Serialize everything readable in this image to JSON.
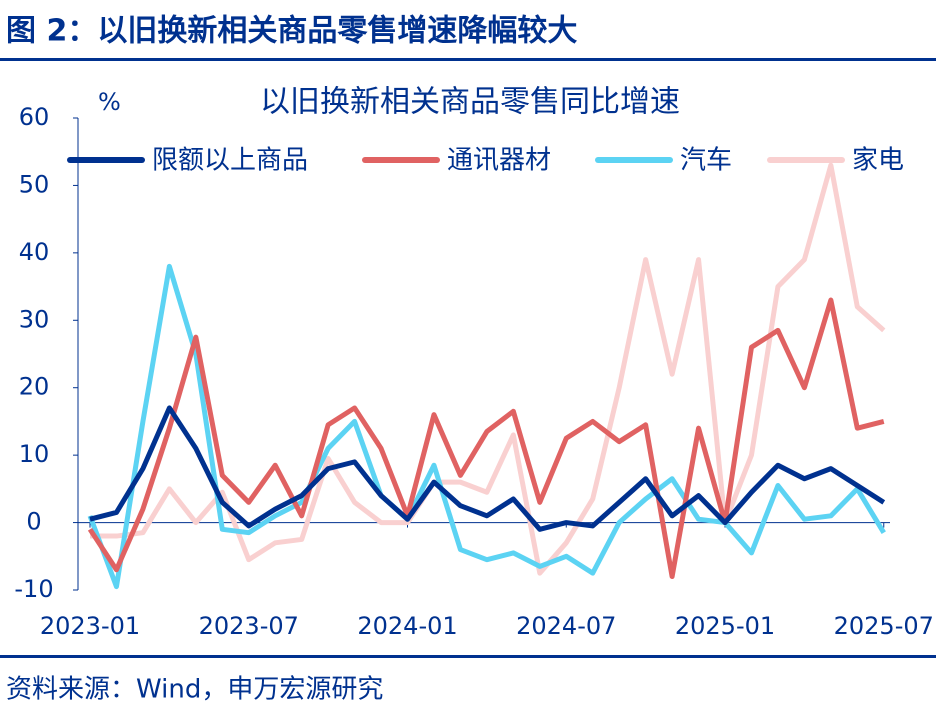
{
  "header": {
    "title": "图 2：以旧换新相关商品零售增速降幅较大"
  },
  "chart_data": {
    "type": "line",
    "title": "以旧换新相关商品零售同比增速",
    "y_label": "%",
    "categories": [
      "2023-01",
      null,
      null,
      null,
      null,
      null,
      "2023-07",
      null,
      null,
      null,
      null,
      null,
      "2024-01",
      null,
      null,
      null,
      null,
      null,
      "2024-07",
      null,
      null,
      null,
      null,
      null,
      "2025-01",
      null,
      null,
      null,
      null,
      null,
      "2025-07"
    ],
    "series": [
      {
        "name": "限额以上商品",
        "color": "#00318f",
        "values": [
          0.5,
          1.5,
          8,
          17,
          11,
          3,
          -0.5,
          2,
          4,
          8,
          9,
          4,
          0.5,
          6,
          2.5,
          1,
          3.5,
          -1,
          0,
          -0.5,
          3,
          6.5,
          1,
          4,
          0,
          4.5,
          8.5,
          6.5,
          8,
          5.5,
          3
        ]
      },
      {
        "name": "通讯器材",
        "color": "#e06262",
        "values": [
          -1,
          -7,
          2,
          14,
          27.5,
          7,
          3,
          8.5,
          1,
          14.5,
          17,
          11,
          1,
          16,
          7,
          13.5,
          16.5,
          3,
          12.5,
          15,
          12,
          14.5,
          -8,
          14,
          0,
          26,
          28.5,
          20,
          33,
          14,
          15
        ]
      },
      {
        "name": "汽车",
        "color": "#5cd3f3",
        "values": [
          1,
          -9.5,
          15,
          38,
          25,
          -1,
          -1.5,
          1,
          3,
          11,
          15,
          4,
          0.5,
          8.5,
          -4,
          -5.5,
          -4.5,
          -6.5,
          -5,
          -7.5,
          0,
          3.5,
          6.5,
          0.5,
          0,
          -4.5,
          5.5,
          0.5,
          1,
          5,
          -1.5
        ]
      },
      {
        "name": "家电",
        "color": "#f9d0d0",
        "values": [
          -2,
          -2,
          -1.5,
          5,
          0,
          4.5,
          -5.5,
          -3,
          -2.5,
          9.5,
          3,
          0,
          0,
          6,
          6,
          4.5,
          13,
          -7.5,
          -3,
          3.5,
          20,
          39,
          22,
          39,
          0,
          10,
          35,
          39,
          53,
          32,
          28.5
        ]
      }
    ],
    "ylim": [
      -10,
      60
    ],
    "yticks": [
      -10,
      0,
      10,
      20,
      30,
      40,
      50,
      60
    ]
  },
  "footer": {
    "source": "资料来源：Wind，申万宏源研究"
  }
}
